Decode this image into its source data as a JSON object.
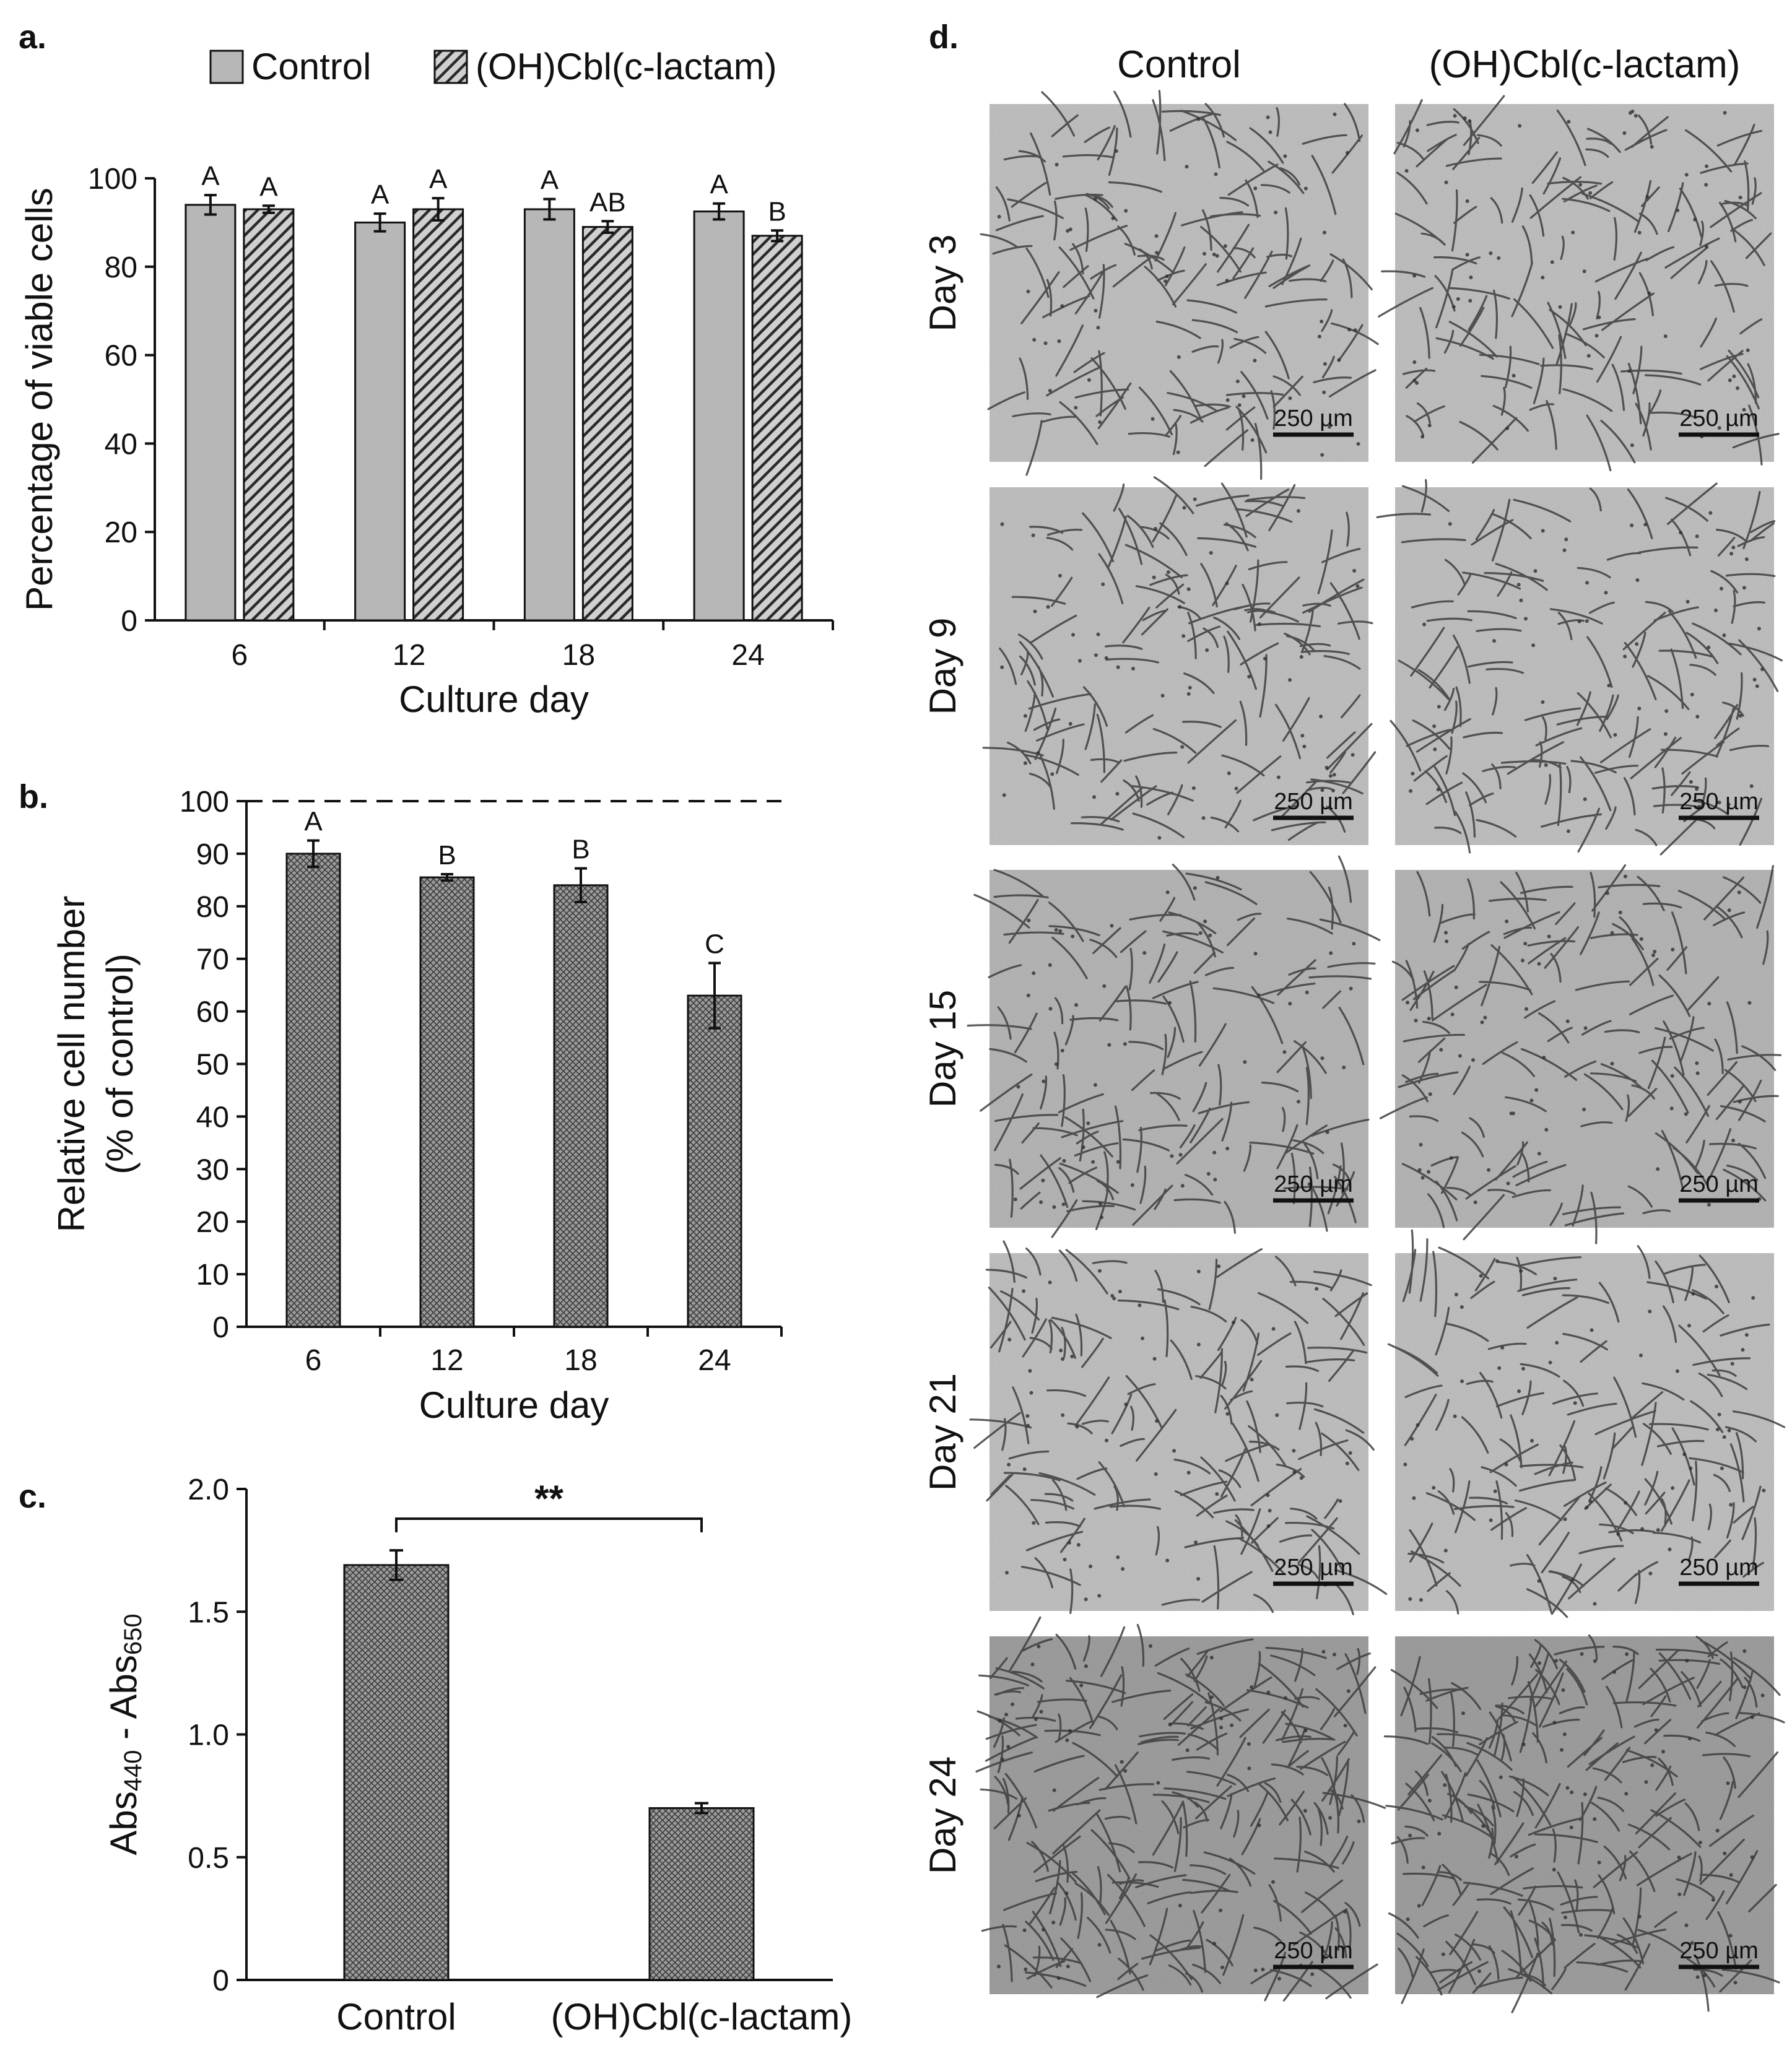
{
  "panels": {
    "a": {
      "letter": "a."
    },
    "b": {
      "letter": "b."
    },
    "c": {
      "letter": "c."
    },
    "d": {
      "letter": "d."
    }
  },
  "colors": {
    "control_fill": "#b7b7b7",
    "hatch_fill": "#5a5a5a",
    "crosshatch_fill": "#8c8c8c",
    "micro_bg": "#c9c9c9",
    "axis": "#111111"
  },
  "chart_data": [
    {
      "id": "a",
      "type": "bar",
      "xlabel": "Culture day",
      "ylabel": "Percentage of viable cells",
      "categories": [
        "6",
        "12",
        "18",
        "24"
      ],
      "ylim": [
        0,
        100
      ],
      "yticks": [
        0,
        20,
        40,
        60,
        80,
        100
      ],
      "legend_position": "top",
      "series": [
        {
          "name": "Control",
          "values": [
            94,
            90,
            93,
            92.5
          ],
          "errors": [
            2.2,
            2.0,
            2.3,
            1.8
          ],
          "letters": [
            "A",
            "A",
            "A",
            "A"
          ]
        },
        {
          "name": "(OH)Cbl(c-lactam)",
          "values": [
            93,
            93,
            89,
            87
          ],
          "errors": [
            0.8,
            2.5,
            1.3,
            1.2
          ],
          "letters": [
            "A",
            "A",
            "AB",
            "B"
          ]
        }
      ]
    },
    {
      "id": "b",
      "type": "bar",
      "xlabel": "Culture day",
      "ylabel_line1": "Relative cell number",
      "ylabel_line2": "(% of control)",
      "categories": [
        "6",
        "12",
        "18",
        "24"
      ],
      "ylim": [
        0,
        100
      ],
      "yticks": [
        0,
        10,
        20,
        30,
        40,
        50,
        60,
        70,
        80,
        90,
        100
      ],
      "reference_line": 100,
      "values": [
        90,
        85.5,
        84,
        63
      ],
      "errors": [
        2.5,
        0.6,
        3.2,
        6.2
      ],
      "letters": [
        "A",
        "B",
        "B",
        "C"
      ]
    },
    {
      "id": "c",
      "type": "bar",
      "categories": [
        "Control",
        "(OH)Cbl(c-lactam)"
      ],
      "ylabel_main": "Abs",
      "ylabel_sub1": "440",
      "ylabel_mid": " - Abs",
      "ylabel_sub2": "650",
      "ylim": [
        0,
        2.0
      ],
      "yticks": [
        "0",
        "0.5",
        "1.0",
        "1.5",
        "2.0"
      ],
      "values": [
        1.69,
        0.7
      ],
      "errors": [
        0.06,
        0.02
      ],
      "significance": "**"
    }
  ],
  "micrographs": {
    "columns": [
      "Control",
      "(OH)Cbl(c-lactam)"
    ],
    "rows": [
      "Day 3",
      "Day 9",
      "Day 15",
      "Day 21",
      "Day 24"
    ],
    "scale_bar_label": "250 µm"
  }
}
